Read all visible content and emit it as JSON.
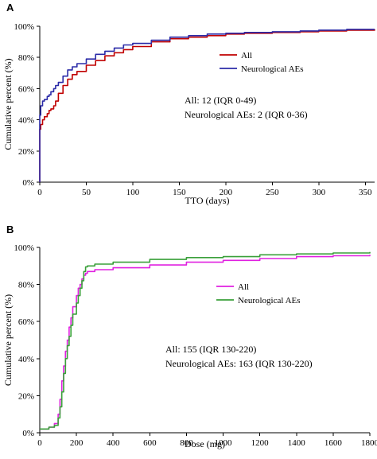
{
  "chart_data": [
    {
      "type": "line",
      "panel": "A",
      "xlabel": "TTO (days)",
      "ylabel": "Cumulative percent (%)",
      "xlim": [
        0,
        360
      ],
      "ylim": [
        0,
        100
      ],
      "xticks": [
        0,
        50,
        100,
        150,
        200,
        250,
        300,
        350
      ],
      "yticks": [
        0,
        20,
        40,
        60,
        80,
        100
      ],
      "ytick_labels": [
        "0%",
        "20%",
        "40%",
        "60%",
        "80%",
        "100%"
      ],
      "legend_position": "right",
      "annotations": [
        "All: 12 (IQR 0-49)",
        "Neurological AEs: 2 (IQR 0-36)"
      ],
      "series": [
        {
          "name": "All",
          "color": "#c00000",
          "x": [
            0,
            0,
            1,
            3,
            5,
            8,
            10,
            12,
            15,
            17,
            20,
            25,
            30,
            35,
            40,
            50,
            60,
            70,
            80,
            90,
            100,
            120,
            140,
            160,
            180,
            200,
            220,
            250,
            280,
            300,
            330,
            360
          ],
          "y": [
            0,
            34,
            37,
            40,
            42,
            44,
            46,
            47,
            49,
            52,
            57,
            62,
            66,
            69,
            71,
            75,
            78,
            81,
            83,
            85,
            87,
            90,
            92,
            93,
            94,
            95,
            95.5,
            96,
            96.5,
            97,
            97.5,
            98
          ]
        },
        {
          "name": "Neurological AEs",
          "color": "#2b2ba8",
          "x": [
            0,
            0,
            1,
            3,
            5,
            8,
            10,
            12,
            15,
            17,
            20,
            25,
            30,
            35,
            40,
            50,
            60,
            70,
            80,
            90,
            100,
            120,
            140,
            160,
            180,
            200,
            220,
            250,
            280,
            300,
            330,
            360
          ],
          "y": [
            0,
            43,
            49,
            52,
            53,
            55,
            56,
            58,
            60,
            62,
            64,
            68,
            72,
            74,
            76,
            79,
            82,
            84,
            86,
            88,
            89,
            91,
            93,
            94,
            95,
            95.5,
            96,
            96.5,
            97,
            97.5,
            98,
            98
          ]
        }
      ]
    },
    {
      "type": "line",
      "panel": "B",
      "xlabel": "Dose (mg)",
      "ylabel": "Cumulative percent (%)",
      "xlim": [
        0,
        1800
      ],
      "ylim": [
        0,
        100
      ],
      "xticks": [
        0,
        200,
        400,
        600,
        800,
        1000,
        1200,
        1400,
        1600,
        1800
      ],
      "xtick_labels": [
        "0",
        "200",
        "400",
        "600",
        "800",
        "1000",
        "1200",
        "1400",
        "1600",
        "1800"
      ],
      "yticks": [
        0,
        20,
        40,
        60,
        80,
        100
      ],
      "ytick_labels": [
        "0%",
        "20%",
        "40%",
        "60%",
        "80%",
        "100%"
      ],
      "legend_position": "right",
      "annotations": [
        "All: 155 (IQR 130-220)",
        "Neurological AEs: 163 (IQR 130-220)"
      ],
      "series": [
        {
          "name": "All",
          "color": "#e020e0",
          "x": [
            0,
            50,
            80,
            100,
            110,
            120,
            130,
            140,
            150,
            160,
            170,
            180,
            200,
            210,
            220,
            230,
            240,
            250,
            260,
            300,
            400,
            600,
            800,
            1000,
            1200,
            1400,
            1600,
            1800
          ],
          "y": [
            2,
            3,
            5,
            10,
            18,
            28,
            36,
            44,
            50,
            57,
            62,
            68,
            74,
            78,
            80,
            83,
            85,
            86,
            87,
            88,
            89,
            90.5,
            92,
            93,
            94,
            95,
            95.5,
            96
          ]
        },
        {
          "name": "Neurological AEs",
          "color": "#3aa03a",
          "x": [
            0,
            50,
            80,
            100,
            110,
            120,
            130,
            140,
            150,
            160,
            170,
            180,
            200,
            210,
            220,
            230,
            240,
            250,
            260,
            300,
            400,
            600,
            800,
            1000,
            1200,
            1400,
            1600,
            1800
          ],
          "y": [
            2,
            3,
            4,
            8,
            14,
            22,
            32,
            40,
            47,
            52,
            58,
            64,
            70,
            74,
            78,
            82,
            87,
            89.5,
            90,
            91,
            92,
            93.5,
            94.5,
            95,
            96,
            96.5,
            97,
            97.5
          ]
        }
      ]
    }
  ]
}
